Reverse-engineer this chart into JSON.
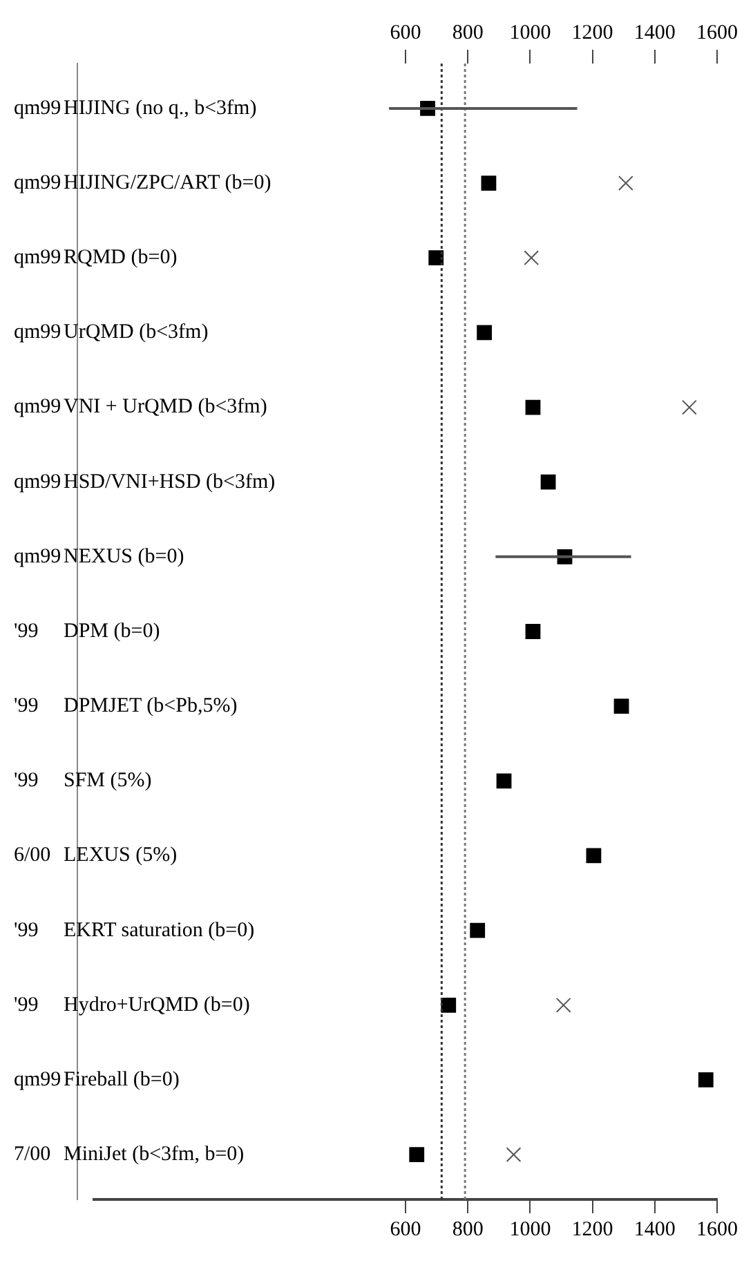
{
  "chart_data": {
    "type": "scatter",
    "orientation": "horizontal",
    "categories": [
      "HIJING (no q., b<3fm)",
      "HIJING/ZPC/ART (b=0)",
      "RQMD (b=0)",
      "UrQMD (b<3fm)",
      "VNI + UrQMD (b<3fm)",
      "HSD/VNI+HSD (b<3fm)",
      "NEXUS (b=0)",
      "DPM (b=0)",
      "DPMJET (b<Pb,5%)",
      "SFM (5%)",
      "LEXUS (5%)",
      "EKRT saturation (b=0)",
      "Hydro+UrQMD (b=0)",
      "Fireball (b=0)",
      "MiniJet (b<3fm, b=0)"
    ],
    "series": [
      {
        "color": "#000000",
        "marker": "square",
        "values": [
          671,
          867,
          698,
          853,
          1009,
          1058,
          1111,
          1009,
          1293,
          916,
          1204,
          831,
          738,
          1564,
          636
        ],
        "errors": [
          [
            547,
            1151
          ],
          null,
          null,
          null,
          null,
          null,
          [
            889,
            1324
          ],
          null,
          null,
          null,
          null,
          null,
          null,
          null,
          null
        ]
      },
      {
        "color": "#555555",
        "marker": "cross",
        "values": [
          null,
          1307,
          1004,
          null,
          1511,
          null,
          null,
          null,
          null,
          null,
          null,
          null,
          1107,
          null,
          947
        ]
      }
    ],
    "xlim": [
      -400,
      1600
    ],
    "xticks": [
      600,
      800,
      1000,
      1200,
      1400,
      1600
    ],
    "x2lim": [
      -400,
      1600
    ],
    "x2ticks": [
      600,
      800,
      1000,
      1200,
      1400,
      1600
    ],
    "ref_lines": [
      {
        "axis": "x",
        "value": 716,
        "line_style": "dotted",
        "color": "#333333"
      },
      {
        "axis": "x",
        "value": 791,
        "line_style": "dotted",
        "color": "#777777"
      }
    ],
    "annotations": [
      "qm99",
      "qm99",
      "qm99",
      "qm99",
      "qm99",
      "qm99",
      "qm99",
      "'99",
      "'99",
      "'99",
      "6/00",
      "'99",
      "'99",
      "qm99",
      "7/00"
    ],
    "grid": false,
    "legend": false
  }
}
